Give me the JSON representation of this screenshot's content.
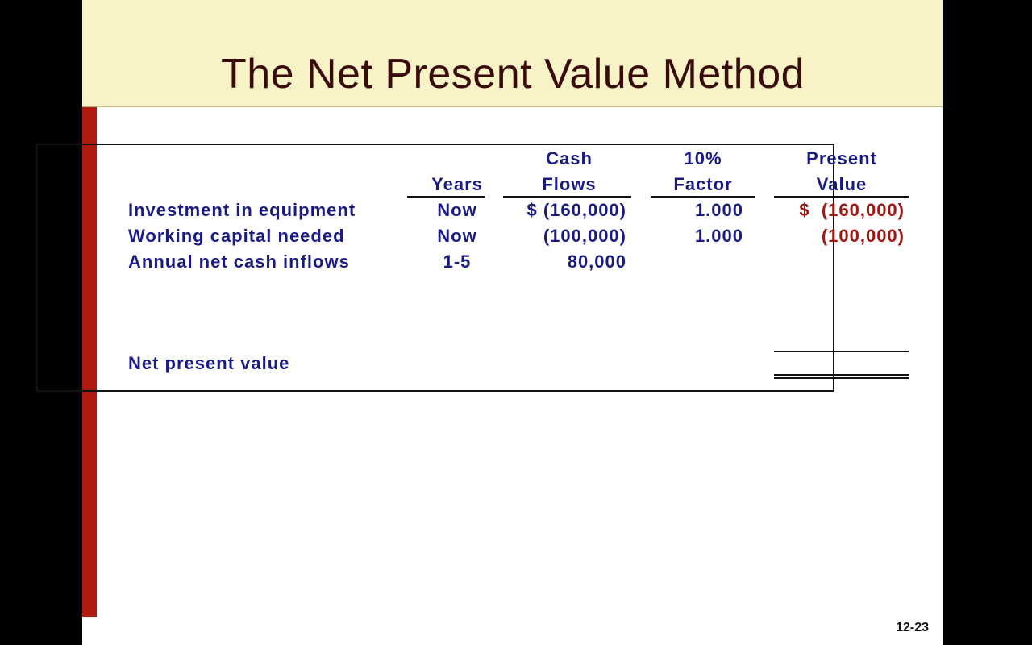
{
  "header": {
    "title": "The Net Present Value Method"
  },
  "table": {
    "columns": [
      [
        "Years"
      ],
      [
        "Cash",
        "Flows"
      ],
      [
        "10%",
        "Factor"
      ],
      [
        "Present",
        "Value"
      ]
    ],
    "rows": [
      {
        "label": "Investment in equipment",
        "years": "Now",
        "cash_flows": "$ (160,000)",
        "factor": "1.000",
        "present_value": "$  (160,000)"
      },
      {
        "label": "Working capital needed",
        "years": "Now",
        "cash_flows": "(100,000)",
        "factor": "1.000",
        "present_value": "(100,000)"
      },
      {
        "label": "Annual net cash inflows",
        "years": "1-5",
        "cash_flows": "80,000"
      }
    ],
    "total_label": "Net present value"
  },
  "footer": {
    "page_number": "12-23"
  }
}
